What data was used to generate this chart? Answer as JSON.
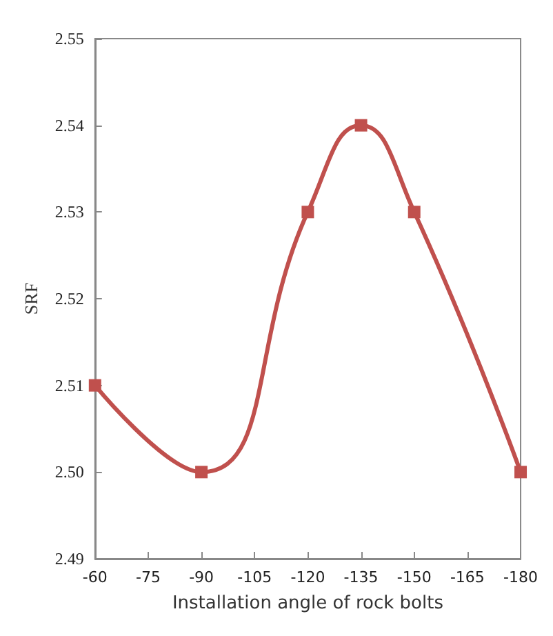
{
  "chart_data": {
    "type": "line",
    "xlabel": "Installation angle of rock bolts",
    "ylabel": "SRF",
    "x": [
      -60,
      -90,
      -120,
      -135,
      -150,
      -180
    ],
    "series": [
      {
        "color": "#c0504d",
        "values": [
          2.51,
          2.5,
          2.53,
          2.54,
          2.53,
          2.5
        ]
      }
    ],
    "xlim": [
      -60,
      -180
    ],
    "xticks": [
      -60,
      -75,
      -90,
      -105,
      -120,
      -135,
      -150,
      -165,
      -180
    ],
    "ylim": [
      2.49,
      2.55
    ],
    "yticks": [
      2.49,
      {
        "value": 2.5,
        "label": "2.50"
      },
      2.51,
      2.52,
      2.53,
      2.54,
      2.55
    ],
    "grid": false,
    "marker": "square",
    "line_style": "solid"
  }
}
